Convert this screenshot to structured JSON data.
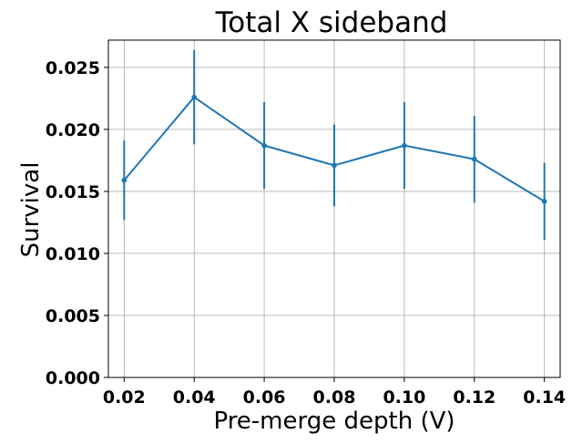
{
  "chart_data": {
    "type": "line",
    "title": "Total X sideband",
    "xlabel": "Pre-merge depth (V)",
    "ylabel": "Survival",
    "xlim": [
      0.0155,
      0.1445
    ],
    "ylim": [
      0.0,
      0.0272
    ],
    "grid": true,
    "x_ticks": [
      "0.02",
      "0.04",
      "0.06",
      "0.08",
      "0.10",
      "0.12",
      "0.14"
    ],
    "y_ticks": [
      "0.000",
      "0.005",
      "0.010",
      "0.015",
      "0.020",
      "0.025"
    ],
    "series": [
      {
        "color": "#1f77b4",
        "marker": "dot",
        "x": [
          0.02,
          0.04,
          0.06,
          0.08,
          0.1,
          0.12,
          0.14
        ],
        "y": [
          0.0159,
          0.0226,
          0.0187,
          0.0171,
          0.0187,
          0.0176,
          0.0142
        ],
        "yerr": [
          0.0032,
          0.0038,
          0.0035,
          0.0033,
          0.0035,
          0.0035,
          0.0031
        ]
      }
    ]
  }
}
